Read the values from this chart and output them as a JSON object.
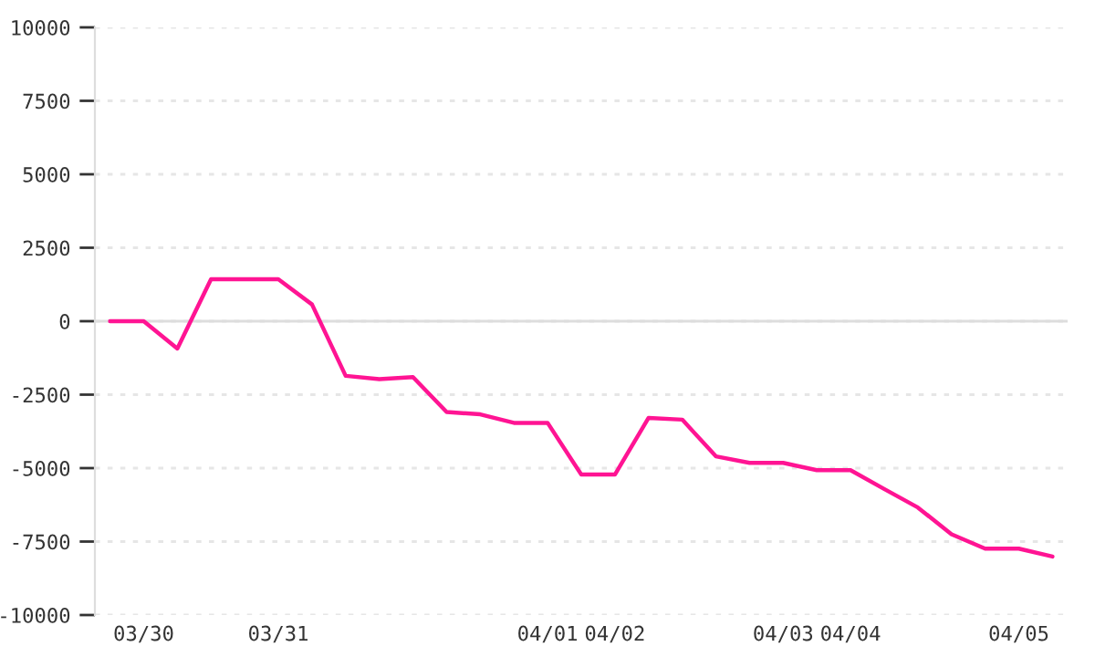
{
  "chart_data": {
    "type": "line",
    "categories": [
      null,
      "03/30",
      null,
      null,
      null,
      "03/31",
      null,
      null,
      null,
      null,
      null,
      null,
      null,
      "04/01",
      null,
      "04/02",
      null,
      null,
      null,
      null,
      "04/03",
      null,
      "04/04",
      null,
      null,
      null,
      null,
      "04/05",
      null
    ],
    "series": [
      {
        "color": "#ff1493",
        "values": [
          0,
          0,
          -930,
          1430,
          1430,
          1430,
          570,
          -1860,
          -1970,
          -1900,
          -3090,
          -3170,
          -3460,
          -3460,
          -5220,
          -5220,
          -3290,
          -3350,
          -4600,
          -4820,
          -4820,
          -5070,
          -5070,
          -5710,
          -6340,
          -7250,
          -7740,
          -7740,
          -8010
        ]
      }
    ],
    "ylim": [
      -10000,
      10000
    ],
    "yticks": [
      -10000,
      -7500,
      -5000,
      -2500,
      0,
      2500,
      5000,
      7500,
      10000
    ],
    "grid": "y",
    "ref_lines": [
      {
        "axis": "y",
        "value": 0,
        "color": "#dddddd",
        "line_style": "solid"
      }
    ],
    "line_style": "solid",
    "marker": "none"
  }
}
